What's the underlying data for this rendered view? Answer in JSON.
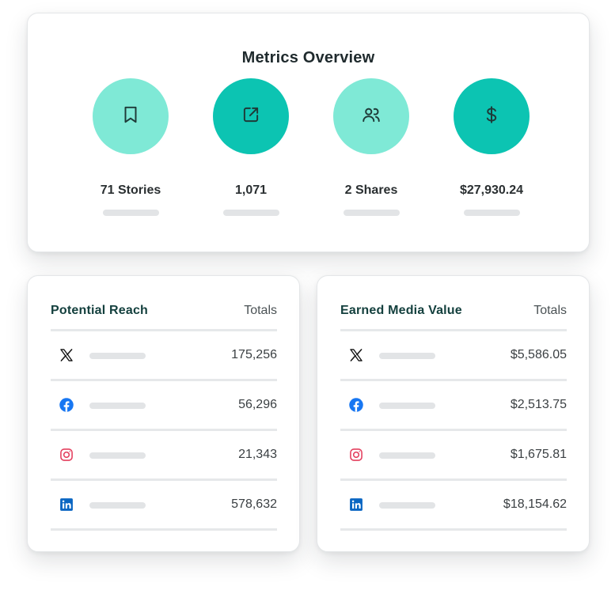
{
  "overview": {
    "title": "Metrics Overview",
    "metrics": [
      {
        "icon": "bookmark-icon",
        "value": "71 Stories",
        "tone": "light"
      },
      {
        "icon": "share-out-icon",
        "value": "1,071",
        "tone": "dark"
      },
      {
        "icon": "users-icon",
        "value": "2 Shares",
        "tone": "light"
      },
      {
        "icon": "dollar-icon",
        "value": "$27,930.24",
        "tone": "dark"
      }
    ]
  },
  "reach": {
    "title": "Potential Reach",
    "totals_label": "Totals",
    "rows": [
      {
        "platform": "x-icon",
        "value": "175,256"
      },
      {
        "platform": "facebook-icon",
        "value": "56,296"
      },
      {
        "platform": "instagram-icon",
        "value": "21,343"
      },
      {
        "platform": "linkedin-icon",
        "value": "578,632"
      }
    ]
  },
  "emv": {
    "title": "Earned Media Value",
    "totals_label": "Totals",
    "rows": [
      {
        "platform": "x-icon",
        "value": "$5,586.05"
      },
      {
        "platform": "facebook-icon",
        "value": "$2,513.75"
      },
      {
        "platform": "instagram-icon",
        "value": "$1,675.81"
      },
      {
        "platform": "linkedin-icon",
        "value": "$18,154.62"
      }
    ]
  },
  "colors": {
    "accent_light": "#7fe9d6",
    "accent_dark": "#0cc4b2",
    "heading_green": "#14403e",
    "facebook": "#1877f2",
    "instagram": "#e4405f",
    "linkedin": "#0a66c2"
  }
}
